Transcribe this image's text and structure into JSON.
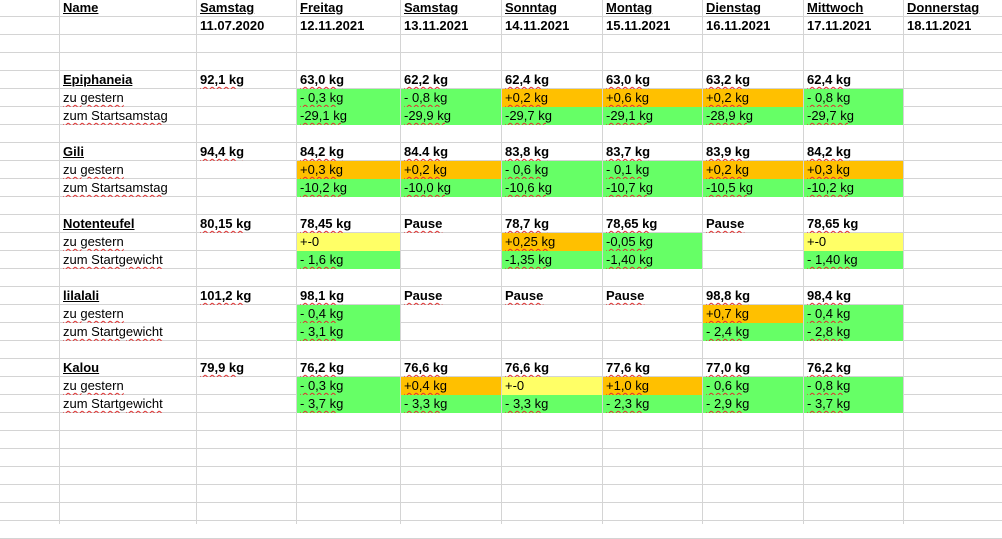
{
  "header": {
    "name_label": "Name",
    "days": [
      {
        "day": "Samstag",
        "date": "11.07.2020"
      },
      {
        "day": "Freitag",
        "date": "12.11.2021"
      },
      {
        "day": "Samstag",
        "date": "13.11.2021"
      },
      {
        "day": "Sonntag",
        "date": "14.11.2021"
      },
      {
        "day": "Montag",
        "date": "15.11.2021"
      },
      {
        "day": "Dienstag",
        "date": "16.11.2021"
      },
      {
        "day": "Mittwoch",
        "date": "17.11.2021"
      },
      {
        "day": "Donnerstag",
        "date": "18.11.2021"
      }
    ]
  },
  "groups": [
    {
      "rows": [
        {
          "label": "Epiphaneia",
          "cells": [
            {
              "v": "92,1 kg"
            },
            {
              "v": "63,0 kg"
            },
            {
              "v": "62,2 kg"
            },
            {
              "v": "62,4 kg"
            },
            {
              "v": "63,0 kg"
            },
            {
              "v": "63,2 kg"
            },
            {
              "v": "62,4 kg"
            },
            {
              "v": ""
            }
          ]
        },
        {
          "label": "zu gestern",
          "cells": [
            {
              "v": ""
            },
            {
              "v": "- 0,3 kg",
              "fill": "green"
            },
            {
              "v": "- 0,8 kg",
              "fill": "green"
            },
            {
              "v": "+0,2 kg",
              "fill": "orange"
            },
            {
              "v": "+0,6 kg",
              "fill": "orange"
            },
            {
              "v": "+0,2 kg",
              "fill": "orange"
            },
            {
              "v": "- 0,8 kg",
              "fill": "green"
            },
            {
              "v": ""
            }
          ]
        },
        {
          "label": "zum Startsamstag",
          "cells": [
            {
              "v": ""
            },
            {
              "v": "-29,1 kg",
              "fill": "green"
            },
            {
              "v": "-29,9 kg",
              "fill": "green"
            },
            {
              "v": "-29,7 kg",
              "fill": "green"
            },
            {
              "v": "-29,1 kg",
              "fill": "green"
            },
            {
              "v": "-28,9 kg",
              "fill": "green"
            },
            {
              "v": "-29,7 kg",
              "fill": "green"
            },
            {
              "v": ""
            }
          ]
        }
      ]
    },
    {
      "rows": [
        {
          "label": "Gili",
          "cells": [
            {
              "v": "94,4 kg"
            },
            {
              "v": "84,2 kg"
            },
            {
              "v": "84.4 kg"
            },
            {
              "v": "83,8 kg"
            },
            {
              "v": "83,7 kg"
            },
            {
              "v": "83,9 kg"
            },
            {
              "v": "84,2 kg"
            },
            {
              "v": ""
            }
          ]
        },
        {
          "label": "zu gestern",
          "cells": [
            {
              "v": ""
            },
            {
              "v": "+0,3 kg",
              "fill": "orange"
            },
            {
              "v": "+0,2 kg",
              "fill": "orange"
            },
            {
              "v": "- 0,6 kg",
              "fill": "green"
            },
            {
              "v": "- 0,1 kg",
              "fill": "green"
            },
            {
              "v": "+0,2 kg",
              "fill": "orange"
            },
            {
              "v": "+0,3 kg",
              "fill": "orange"
            },
            {
              "v": ""
            }
          ]
        },
        {
          "label": "zum Startsamstag",
          "cells": [
            {
              "v": ""
            },
            {
              "v": "-10,2 kg",
              "fill": "green"
            },
            {
              "v": "-10,0 kg",
              "fill": "green"
            },
            {
              "v": "-10,6 kg",
              "fill": "green"
            },
            {
              "v": "-10,7 kg",
              "fill": "green"
            },
            {
              "v": "-10,5 kg",
              "fill": "green"
            },
            {
              "v": "-10,2 kg",
              "fill": "green"
            },
            {
              "v": ""
            }
          ]
        }
      ]
    },
    {
      "rows": [
        {
          "label": "Notenteufel",
          "cells": [
            {
              "v": "80,15 kg"
            },
            {
              "v": "78,45 kg"
            },
            {
              "v": "Pause"
            },
            {
              "v": "78,7 kg"
            },
            {
              "v": "78,65 kg"
            },
            {
              "v": "Pause"
            },
            {
              "v": "78,65 kg"
            },
            {
              "v": ""
            }
          ]
        },
        {
          "label": "zu gestern",
          "cells": [
            {
              "v": ""
            },
            {
              "v": "+-0",
              "fill": "yellow"
            },
            {
              "v": ""
            },
            {
              "v": "+0,25 kg",
              "fill": "orange"
            },
            {
              "v": "-0,05 kg",
              "fill": "green"
            },
            {
              "v": ""
            },
            {
              "v": "+-0",
              "fill": "yellow"
            },
            {
              "v": ""
            }
          ]
        },
        {
          "label": "zum Startgewicht",
          "cells": [
            {
              "v": ""
            },
            {
              "v": "- 1,6 kg",
              "fill": "green"
            },
            {
              "v": ""
            },
            {
              "v": "-1,35 kg",
              "fill": "green"
            },
            {
              "v": "-1,40 kg",
              "fill": "green"
            },
            {
              "v": ""
            },
            {
              "v": "- 1,40 kg",
              "fill": "green"
            },
            {
              "v": ""
            }
          ]
        }
      ]
    },
    {
      "rows": [
        {
          "label": "lilalali",
          "cells": [
            {
              "v": "101,2 kg"
            },
            {
              "v": "98,1 kg"
            },
            {
              "v": "Pause"
            },
            {
              "v": "Pause"
            },
            {
              "v": "Pause"
            },
            {
              "v": "98,8 kg"
            },
            {
              "v": "98,4 kg"
            },
            {
              "v": ""
            }
          ]
        },
        {
          "label": "zu gestern",
          "cells": [
            {
              "v": ""
            },
            {
              "v": "- 0,4 kg",
              "fill": "green"
            },
            {
              "v": ""
            },
            {
              "v": ""
            },
            {
              "v": ""
            },
            {
              "v": "+0,7 kg",
              "fill": "orange"
            },
            {
              "v": "- 0,4 kg",
              "fill": "green"
            },
            {
              "v": ""
            }
          ]
        },
        {
          "label": "zum Startgewicht",
          "cells": [
            {
              "v": ""
            },
            {
              "v": "- 3,1 kg",
              "fill": "green"
            },
            {
              "v": ""
            },
            {
              "v": ""
            },
            {
              "v": ""
            },
            {
              "v": "- 2,4 kg",
              "fill": "green"
            },
            {
              "v": "- 2,8 kg",
              "fill": "green"
            },
            {
              "v": ""
            }
          ]
        }
      ]
    },
    {
      "rows": [
        {
          "label": "Kalou",
          "cells": [
            {
              "v": "79,9 kg"
            },
            {
              "v": "76,2 kg"
            },
            {
              "v": "76,6 kg"
            },
            {
              "v": "76,6 kg"
            },
            {
              "v": "77,6 kg"
            },
            {
              "v": "77,0 kg"
            },
            {
              "v": "76,2 kg"
            },
            {
              "v": ""
            }
          ]
        },
        {
          "label": "zu gestern",
          "cells": [
            {
              "v": ""
            },
            {
              "v": "- 0,3 kg",
              "fill": "green"
            },
            {
              "v": "+0,4 kg",
              "fill": "orange"
            },
            {
              "v": "+-0",
              "fill": "yellow"
            },
            {
              "v": "+1,0 kg",
              "fill": "orange"
            },
            {
              "v": "- 0,6 kg",
              "fill": "green"
            },
            {
              "v": "- 0,8 kg",
              "fill": "green"
            },
            {
              "v": ""
            }
          ]
        },
        {
          "label": "zum Startgewicht",
          "cells": [
            {
              "v": ""
            },
            {
              "v": "- 3,7 kg",
              "fill": "green"
            },
            {
              "v": "- 3,3 kg",
              "fill": "green"
            },
            {
              "v": "- 3,3 kg",
              "fill": "green"
            },
            {
              "v": "- 2,3 kg",
              "fill": "green"
            },
            {
              "v": "- 2,9 kg",
              "fill": "green"
            },
            {
              "v": "- 3,7 kg",
              "fill": "green"
            },
            {
              "v": ""
            }
          ]
        }
      ]
    }
  ],
  "colors": {
    "green": "#66ff66",
    "orange": "#ffc000",
    "yellow": "#ffff66",
    "grid": "#d4d4d4"
  }
}
